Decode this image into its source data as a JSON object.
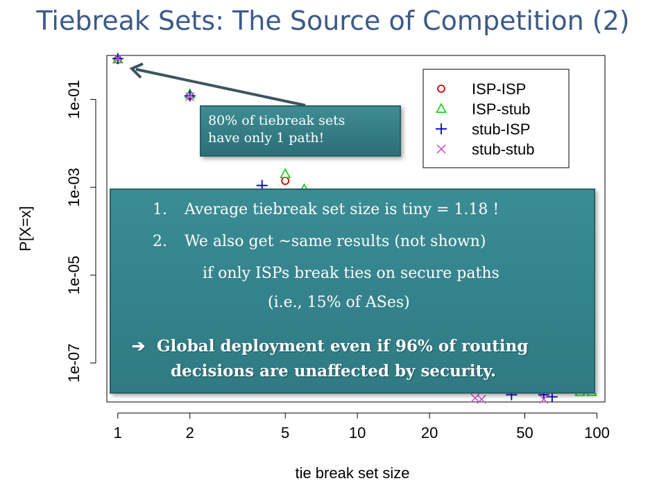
{
  "slide": {
    "title": "Tiebreak Sets: The Source of Competition (2)"
  },
  "callout": {
    "line1": "80% of tiebreak sets",
    "line2": "have only 1 path!"
  },
  "summary": {
    "item1_num": "1.",
    "item1_text": "Average tiebreak set size is tiny = 1.18 !",
    "item2_num": "2.",
    "item2_text": "We also get ~same results (not shown)",
    "item2_cont1": "if only ISPs break ties on secure paths",
    "item2_cont2": "(i.e., 15% of ASes)",
    "conclusion_arrow": "➔",
    "conclusion_line1": "Global deployment even if 96% of routing",
    "conclusion_line2": "decisions are unaffected by security."
  },
  "chart_data": {
    "type": "scatter",
    "xscale": "log",
    "yscale": "log",
    "xlabel": "tie break set size",
    "ylabel": "P[X=x]",
    "xticks": [
      1,
      2,
      5,
      10,
      20,
      50,
      100
    ],
    "xtick_labels": [
      "1",
      "2",
      "5",
      "10",
      "20",
      "50",
      "100"
    ],
    "yticks": [
      0.1,
      0.001,
      1e-05,
      1e-07
    ],
    "ytick_labels": [
      "1e-01",
      "1e-03",
      "1e-05",
      "1e-07"
    ],
    "xlim": [
      0.9,
      108
    ],
    "ylim": [
      1.3e-08,
      1.0
    ],
    "legend_position": "top-right",
    "grid": false,
    "series": [
      {
        "name": "ISP-ISP",
        "marker": "circle",
        "color": "#cc0000",
        "x": [
          1,
          2,
          5,
          6
        ],
        "y": [
          0.8,
          0.12,
          0.0014,
          0.00065
        ]
      },
      {
        "name": "ISP-stub",
        "marker": "triangle",
        "color": "#22cc22",
        "x": [
          1,
          2,
          5,
          6,
          85,
          95
        ],
        "y": [
          0.82,
          0.13,
          0.002,
          0.0009,
          2.2e-08,
          2.2e-08
        ]
      },
      {
        "name": "stub-ISP",
        "marker": "plus",
        "color": "#0000cc",
        "x": [
          1,
          2,
          4,
          44,
          60,
          65
        ],
        "y": [
          0.85,
          0.12,
          0.0011,
          1.9e-08,
          1.9e-08,
          1.7e-08
        ]
      },
      {
        "name": "stub-stub",
        "marker": "x",
        "color": "#cc55cc",
        "x": [
          1,
          2,
          31,
          33,
          60
        ],
        "y": [
          0.84,
          0.115,
          1.6e-08,
          1.5e-08,
          1.5e-08
        ]
      }
    ]
  }
}
